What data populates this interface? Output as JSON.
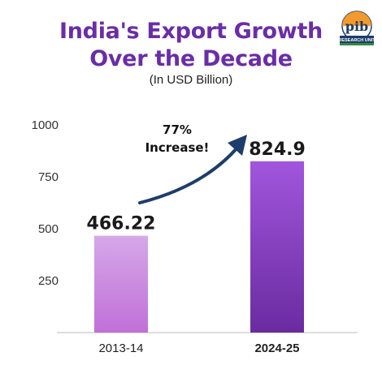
{
  "logo": {
    "text": "pib",
    "subtext": "RESEARCH UNIT"
  },
  "chart_data": {
    "type": "bar",
    "title_line1": "India's Export Growth",
    "title_line2": "Over the Decade",
    "subtitle": "(In USD Billion)",
    "categories": [
      "2013-14",
      "2024-25"
    ],
    "values": [
      466.22,
      824.9
    ],
    "value_labels": [
      "466.22",
      "824.9"
    ],
    "yticks": [
      250,
      500,
      750,
      1000
    ],
    "ylim": [
      0,
      1000
    ],
    "annotation_line1": "77%",
    "annotation_line2": "Increase!",
    "colors": {
      "bar1_top": "#d6a8e8",
      "bar1_bottom": "#c070d8",
      "bar2_top": "#a156dc",
      "bar2_bottom": "#6a2ba0",
      "arrow": "#1d3d6b",
      "title": "#6a2da8"
    }
  }
}
